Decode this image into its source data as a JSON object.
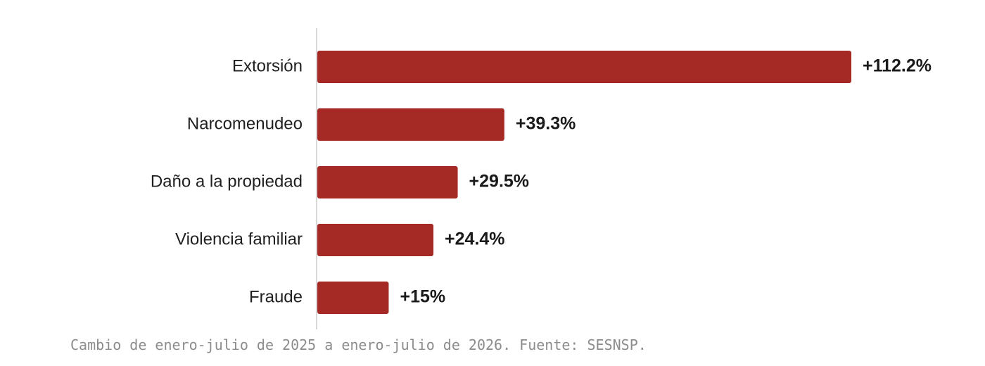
{
  "chart_data": {
    "type": "bar",
    "orientation": "horizontal",
    "categories": [
      "Extorsión",
      "Narcomenudeo",
      "Daño a la propiedad",
      "Violencia familiar",
      "Fraude"
    ],
    "values": [
      112.2,
      39.3,
      29.5,
      24.4,
      15
    ],
    "value_labels": [
      "+112.2%",
      "+39.3%",
      "+29.5%",
      "+24.4%",
      "+15%"
    ],
    "xlim": [
      0,
      112.2
    ],
    "grid": false,
    "legend": "none",
    "colors": {
      "bar": "#a52a25",
      "axis": "#cccccc"
    }
  },
  "caption": "Cambio de enero-julio de 2025 a enero-julio de 2026. Fuente: SESNSP."
}
